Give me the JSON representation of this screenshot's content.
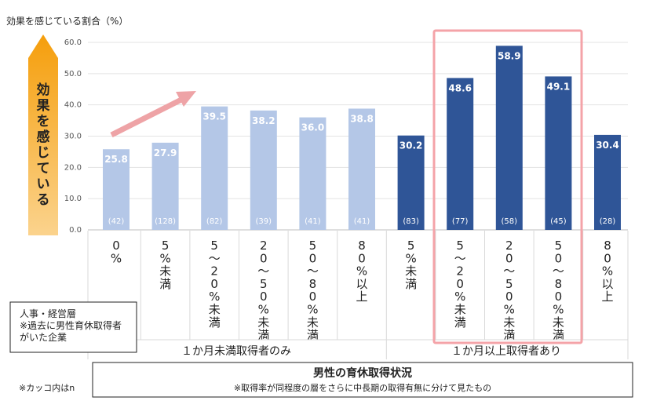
{
  "chart_data": {
    "type": "bar",
    "ylabel": "効果を感じている割合（%）",
    "ylim": [
      0,
      60
    ],
    "yticks": [
      "0.0",
      "10.0",
      "20.0",
      "30.0",
      "40.0",
      "50.0",
      "60.0"
    ],
    "side_arrow_label": "効果を感じている",
    "categories": [
      "0%",
      "5%未満",
      "5~20%未満",
      "20~50%未満",
      "50~80%未満",
      "80%以上",
      "5%未満",
      "5~20%未満",
      "20~50%未満",
      "50~80%未満",
      "80%以上"
    ],
    "values": [
      25.8,
      27.9,
      39.5,
      38.2,
      36.0,
      38.8,
      30.2,
      48.6,
      58.9,
      49.1,
      30.4
    ],
    "value_labels": [
      "25.8",
      "27.9",
      "39.5",
      "38.2",
      "36.0",
      "38.8",
      "30.2",
      "48.6",
      "58.9",
      "49.1",
      "30.4"
    ],
    "n_labels": [
      "(42)",
      "(128)",
      "(82)",
      "(39)",
      "(41)",
      "(41)",
      "(83)",
      "(77)",
      "(58)",
      "(45)",
      "(28)"
    ],
    "group_labels": [
      "１か月未満取得者のみ",
      "１か月以上取得者あり"
    ],
    "colors": {
      "light": "#b4c7e7",
      "dark": "#2f5597",
      "highlight": "#f4a3a8",
      "arrow": "#eea3a6",
      "gold_top": "#fbd38d",
      "gold_bottom": "#f59e0b"
    },
    "subject_box": [
      "人事・経営層",
      "※過去に男性育休取得者",
      "がいた企業"
    ],
    "xaxis_title": "男性の育休取得状況",
    "xaxis_subtitle": "※取得率が同程度の層をさらに中長期の取得有無に分けて見たもの",
    "footnote": "※カッコ内はn"
  }
}
